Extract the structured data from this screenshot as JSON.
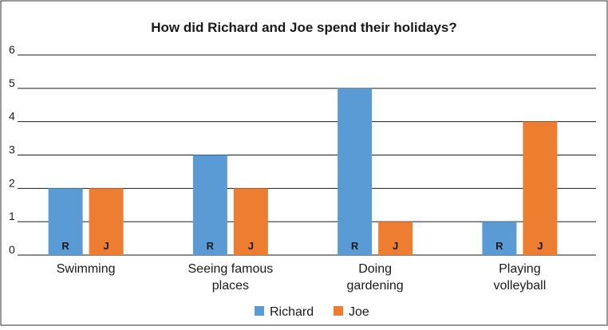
{
  "chart_data": {
    "type": "bar",
    "title": "How did Richard and Joe spend their holidays?",
    "xlabel": "",
    "ylabel": "",
    "ylim": [
      0,
      6
    ],
    "yticks": [
      0,
      1,
      2,
      3,
      4,
      5,
      6
    ],
    "grid": true,
    "legend_position": "bottom",
    "categories": [
      [
        "Swimming"
      ],
      [
        "Seeing famous",
        "places"
      ],
      [
        "Doing",
        "gardening"
      ],
      [
        "Playing",
        "volleyball"
      ]
    ],
    "series": [
      {
        "name": "Richard",
        "bar_label": "R",
        "color": "#5b9bd5",
        "values": [
          2,
          3,
          5,
          1
        ]
      },
      {
        "name": "Joe",
        "bar_label": "J",
        "color": "#ed7d31",
        "values": [
          2,
          2,
          1,
          4
        ]
      }
    ]
  }
}
